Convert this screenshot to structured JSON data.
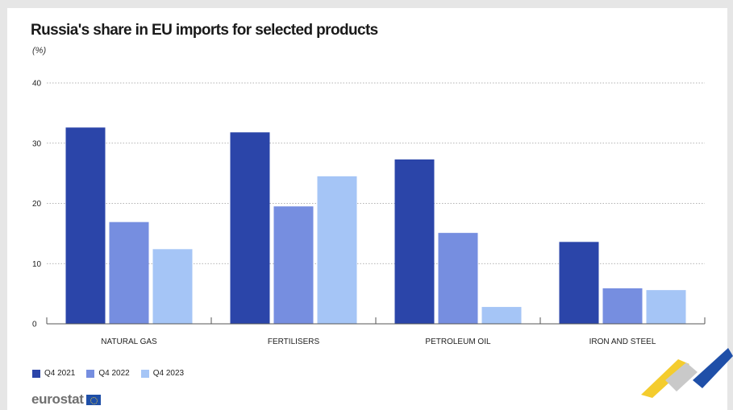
{
  "chart_data": {
    "type": "bar",
    "title": "Russia's share in EU imports for selected products",
    "unit": "(%)",
    "categories": [
      "NATURAL GAS",
      "FERTILISERS",
      "PETROLEUM OIL",
      "IRON AND STEEL"
    ],
    "series": [
      {
        "name": "Q4 2021",
        "color": "#2b45a9",
        "values": [
          32.6,
          31.8,
          27.3,
          13.6
        ]
      },
      {
        "name": "Q4 2022",
        "color": "#768ee0",
        "values": [
          16.9,
          19.5,
          15.1,
          5.9
        ]
      },
      {
        "name": "Q4 2023",
        "color": "#a5c5f6",
        "values": [
          12.4,
          24.5,
          2.8,
          5.6
        ]
      }
    ],
    "yticks": [
      0,
      10,
      20,
      30,
      40
    ],
    "ylim": [
      0,
      40
    ],
    "grid": true,
    "legend": "bottom-left"
  },
  "footer": {
    "brand": "eurostat"
  }
}
